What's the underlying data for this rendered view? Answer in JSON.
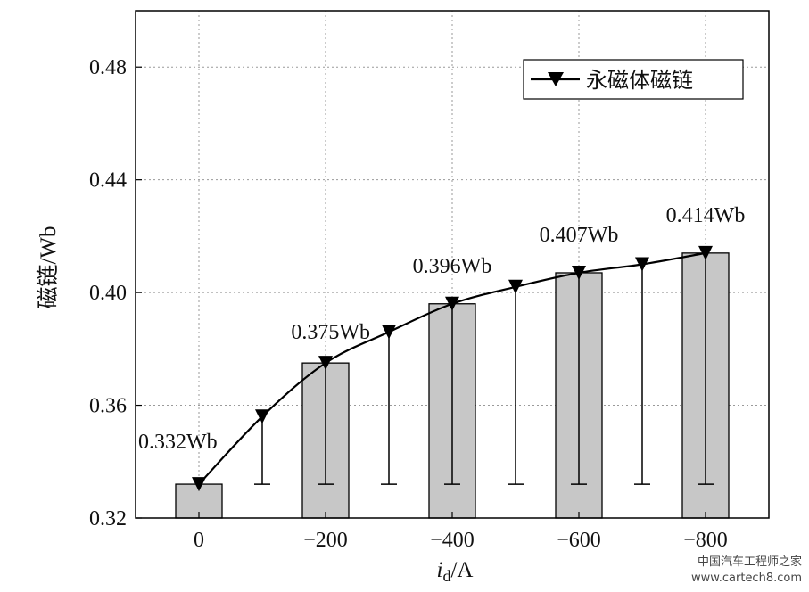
{
  "chart_data": {
    "type": "bar",
    "categories": [
      "0",
      "−200",
      "−400",
      "−600",
      "−800"
    ],
    "bar_x": [
      0,
      -200,
      -400,
      -600,
      -800
    ],
    "bar_values": [
      0.332,
      0.375,
      0.396,
      0.407,
      0.414
    ],
    "bar_labels": [
      "0.332Wb",
      "0.375Wb",
      "0.396Wb",
      "0.407Wb",
      "0.414Wb"
    ],
    "line_series": {
      "name": "永磁体磁链",
      "x": [
        0,
        -100,
        -200,
        -300,
        -400,
        -500,
        -600,
        -700,
        -800
      ],
      "values": [
        0.332,
        0.356,
        0.375,
        0.386,
        0.396,
        0.402,
        0.407,
        0.41,
        0.414
      ],
      "marker": "down-triangle",
      "error_low": 0.332
    },
    "xlabel_main": "i",
    "xlabel_sub": "d",
    "xlabel_rest": "/A",
    "ylabel": "磁链/Wb",
    "ylim": [
      0.32,
      0.5
    ],
    "yticks": [
      "0.32",
      "0.36",
      "0.40",
      "0.44",
      "0.48"
    ],
    "xlim": [
      100,
      -900
    ],
    "grid": true,
    "legend_position": "top-right",
    "colors": {
      "bar": "#c7c7c7",
      "line": "#000000",
      "grid": "#9a9a9a"
    }
  },
  "watermark": {
    "line1": "中国汽车工程师之家",
    "line2": "www.cartech8.com"
  }
}
